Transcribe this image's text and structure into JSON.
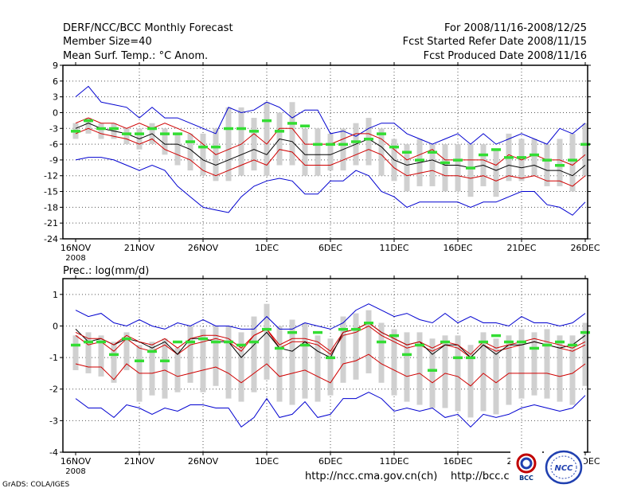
{
  "header": {
    "title": "DERF/NCC/BCC Monthly Forecast",
    "member_size": "Member Size=40",
    "variable": "Mean Surf. Temp.: °C Anom.",
    "period": "For 2008/11/16-2008/12/25",
    "started": "Fcst Started Refer Date 2008/11/15",
    "produced": "Fcst Produced Date 2008/11/16"
  },
  "footer": {
    "grads": "GrADS: COLA/IGES",
    "url1": "http://ncc.cma.gov.cn(ch)",
    "url2": "http://bcc.c",
    "logo_bcc": "BCC",
    "logo_ncc": "NCC"
  },
  "colors": {
    "median": "#000000",
    "inner": "#d00000",
    "outer": "#0000d0",
    "box": "#d0d0d0",
    "obs": "#33dd33",
    "grid": "#555555"
  },
  "chart_data": [
    {
      "type": "line",
      "name": "temperature",
      "title": "",
      "xlabel": "",
      "ylabel": "",
      "x_ticks": [
        "16NOV",
        "21NOV",
        "26NOV",
        "1DEC",
        "6DEC",
        "11DEC",
        "16DEC",
        "21DEC",
        "26DEC"
      ],
      "x_sublabel": "2008",
      "ylim": [
        -24,
        9
      ],
      "y_ticks": [
        9,
        6,
        3,
        0,
        -3,
        -6,
        -9,
        -12,
        -15,
        -18,
        -21,
        -24
      ],
      "y_labels": [
        "9",
        "6",
        "3",
        "0",
        "-3",
        "-6",
        "-9",
        "-12",
        "-15",
        "-18",
        "-21",
        "-24"
      ],
      "grid": true,
      "series": [
        {
          "name": "max",
          "color": "outer",
          "values": [
            3,
            5,
            2,
            1.5,
            1,
            -1,
            1,
            -1,
            -1,
            -2,
            -3,
            -4,
            1,
            0,
            0.5,
            2,
            1,
            -1,
            0.5,
            0.5,
            -4,
            -3.5,
            -4.5,
            -3,
            -2,
            -2,
            -4,
            -5,
            -6,
            -5,
            -4,
            -6,
            -4,
            -6,
            -5,
            -4,
            -5,
            -6,
            -3,
            -4,
            -2
          ]
        },
        {
          "name": "q75",
          "color": "inner",
          "values": [
            -2,
            -1,
            -2,
            -2,
            -3,
            -2,
            -3,
            -2,
            -3,
            -4,
            -6,
            -8,
            -7,
            -6,
            -4,
            -6,
            -3,
            -3,
            -6,
            -6,
            -6,
            -5,
            -4,
            -4,
            -5,
            -7,
            -9,
            -8,
            -7,
            -9,
            -9,
            -9,
            -9,
            -10,
            -8,
            -9,
            -8,
            -9,
            -9,
            -10,
            -8
          ]
        },
        {
          "name": "median",
          "color": "median",
          "values": [
            -3,
            -2,
            -3,
            -3.5,
            -4,
            -5,
            -4,
            -6,
            -6,
            -7,
            -9,
            -10,
            -9,
            -8,
            -7,
            -8,
            -5,
            -5.5,
            -8,
            -8,
            -8,
            -7,
            -6,
            -5,
            -6.5,
            -9,
            -10,
            -9.5,
            -9,
            -10,
            -10,
            -10.5,
            -10,
            -11,
            -10,
            -10.5,
            -10,
            -11,
            -11,
            -12,
            -10
          ]
        },
        {
          "name": "q25",
          "color": "inner",
          "values": [
            -4,
            -3,
            -4,
            -4.5,
            -5,
            -6,
            -5,
            -7,
            -8,
            -9,
            -11,
            -12,
            -11,
            -10,
            -9,
            -10,
            -7,
            -7.5,
            -10,
            -10,
            -10,
            -9,
            -8,
            -7,
            -8,
            -10.5,
            -12,
            -11.5,
            -11,
            -12,
            -12,
            -12.5,
            -12,
            -13,
            -12,
            -12.5,
            -12,
            -13,
            -13,
            -14,
            -12
          ]
        },
        {
          "name": "min",
          "color": "outer",
          "values": [
            -9,
            -8.5,
            -8.5,
            -9,
            -10,
            -11,
            -10,
            -11,
            -14,
            -16,
            -18,
            -18.5,
            -19,
            -16,
            -14,
            -13,
            -12.5,
            -13,
            -15.5,
            -15.5,
            -13,
            -13,
            -11,
            -12,
            -15,
            -16,
            -18,
            -17,
            -17,
            -17,
            -17,
            -18,
            -17,
            -17,
            -16,
            -15,
            -15,
            -17.5,
            -18,
            -19.5,
            -17
          ]
        }
      ],
      "boxes": [
        [
          -5,
          -2
        ],
        [
          -4,
          -1
        ],
        [
          -5,
          -2
        ],
        [
          -5,
          -2
        ],
        [
          -6,
          -3
        ],
        [
          -7,
          -3
        ],
        [
          -6,
          -2
        ],
        [
          -8,
          -3
        ],
        [
          -10,
          -4
        ],
        [
          -11,
          -4
        ],
        [
          -12,
          -4
        ],
        [
          -13,
          -3
        ],
        [
          -13,
          1
        ],
        [
          -12,
          1
        ],
        [
          -11,
          -1
        ],
        [
          -12,
          2
        ],
        [
          -10,
          0
        ],
        [
          -10,
          2
        ],
        [
          -12,
          -3
        ],
        [
          -12,
          -3
        ],
        [
          -11,
          -4
        ],
        [
          -11,
          -3
        ],
        [
          -10,
          -2
        ],
        [
          -10,
          -1
        ],
        [
          -12,
          -3
        ],
        [
          -13,
          -5
        ],
        [
          -15,
          -6
        ],
        [
          -14,
          -5
        ],
        [
          -14,
          -6
        ],
        [
          -15,
          -6
        ],
        [
          -15,
          -6
        ],
        [
          -16,
          -6
        ],
        [
          -14,
          -6
        ],
        [
          -16,
          -7
        ],
        [
          -13,
          -4
        ],
        [
          -13,
          -5
        ],
        [
          -12,
          -5
        ],
        [
          -14,
          -6
        ],
        [
          -14,
          -5
        ],
        [
          -15,
          -4
        ],
        [
          -12,
          -2
        ]
      ],
      "observed": [
        -3.5,
        -1.5,
        -3,
        -3,
        -4,
        -4,
        -3,
        -4,
        -4,
        -5.5,
        -6.5,
        -6.5,
        -3,
        -3,
        -3.5,
        -1.5,
        -3.5,
        -2,
        -2.5,
        -6,
        -6,
        -6,
        -5.5,
        -5,
        -4,
        -6.5,
        -7.5,
        -9,
        -7.5,
        -9.5,
        -9,
        -10.5,
        -8,
        -7,
        -8.5,
        -8.5,
        -8,
        -9,
        -10,
        -9,
        -6
      ]
    },
    {
      "type": "line",
      "name": "precipitation",
      "title": "Prec.: log(mm/d)",
      "xlabel": "",
      "ylabel": "",
      "x_ticks": [
        "16NOV",
        "21NOV",
        "26NOV",
        "1DEC",
        "6DEC",
        "11DEC",
        "16DEC",
        "21DEC",
        "26DEC"
      ],
      "x_sublabel": "2008",
      "ylim": [
        -4,
        1.5
      ],
      "y_ticks": [
        1,
        0,
        -1,
        -2,
        -3,
        -4
      ],
      "y_labels": [
        "1",
        "0",
        "-1",
        "-2",
        "-3",
        "-4"
      ],
      "grid": true,
      "series": [
        {
          "name": "max",
          "color": "outer",
          "values": [
            0.5,
            0.3,
            0.4,
            0.1,
            0.0,
            0.2,
            0.0,
            -0.1,
            0.1,
            0.0,
            0.2,
            0.0,
            0.0,
            -0.1,
            -0.1,
            0.3,
            -0.1,
            -0.1,
            0.1,
            0.0,
            -0.1,
            0.1,
            0.5,
            0.7,
            0.5,
            0.3,
            0.4,
            0.2,
            0.1,
            0.4,
            0.1,
            0.3,
            0.1,
            0.1,
            0.0,
            0.3,
            0.1,
            0.1,
            0.0,
            0.1,
            0.4
          ]
        },
        {
          "name": "q75",
          "color": "inner",
          "values": [
            -0.3,
            -0.6,
            -0.5,
            -0.8,
            -0.4,
            -0.7,
            -0.8,
            -0.6,
            -0.9,
            -0.6,
            -0.5,
            -0.4,
            -0.5,
            -0.8,
            -0.3,
            -0.1,
            -0.7,
            -0.5,
            -0.5,
            -0.6,
            -0.9,
            -0.3,
            -0.2,
            0.0,
            -0.3,
            -0.5,
            -0.7,
            -0.6,
            -0.8,
            -0.6,
            -0.7,
            -1.0,
            -0.6,
            -0.8,
            -0.7,
            -0.6,
            -0.5,
            -0.6,
            -0.7,
            -0.8,
            -0.6
          ]
        },
        {
          "name": "median",
          "color": "median",
          "values": [
            -0.1,
            -0.5,
            -0.4,
            -0.6,
            -0.4,
            -0.5,
            -0.7,
            -0.5,
            -0.9,
            -0.4,
            -0.4,
            -0.5,
            -0.5,
            -1.0,
            -0.6,
            -0.2,
            -0.7,
            -0.8,
            -0.5,
            -0.8,
            -1.0,
            -0.2,
            -0.1,
            0.1,
            -0.2,
            -0.4,
            -0.6,
            -0.5,
            -0.9,
            -0.6,
            -0.6,
            -1.0,
            -0.6,
            -0.9,
            -0.6,
            -0.6,
            -0.5,
            -0.6,
            -0.7,
            -0.6,
            -0.3
          ]
        },
        {
          "name": "q25",
          "color": "inner",
          "values": [
            -1.2,
            -1.3,
            -1.3,
            -1.7,
            -1.2,
            -1.5,
            -1.5,
            -1.4,
            -1.6,
            -1.5,
            -1.4,
            -1.3,
            -1.5,
            -1.8,
            -1.5,
            -1.2,
            -1.6,
            -1.5,
            -1.4,
            -1.6,
            -1.8,
            -1.2,
            -1.1,
            -0.9,
            -1.2,
            -1.4,
            -1.6,
            -1.5,
            -1.8,
            -1.5,
            -1.6,
            -1.9,
            -1.5,
            -1.8,
            -1.5,
            -1.5,
            -1.5,
            -1.5,
            -1.6,
            -1.5,
            -1.2
          ]
        },
        {
          "name": "min",
          "color": "outer",
          "values": [
            -2.3,
            -2.6,
            -2.6,
            -2.9,
            -2.5,
            -2.6,
            -2.8,
            -2.6,
            -2.7,
            -2.5,
            -2.5,
            -2.6,
            -2.6,
            -3.2,
            -2.9,
            -2.3,
            -2.9,
            -2.8,
            -2.4,
            -2.9,
            -2.8,
            -2.3,
            -2.3,
            -2.1,
            -2.3,
            -2.7,
            -2.6,
            -2.7,
            -2.6,
            -2.9,
            -2.8,
            -3.2,
            -2.8,
            -2.9,
            -2.8,
            -2.6,
            -2.5,
            -2.6,
            -2.7,
            -2.6,
            -2.2
          ]
        },
        {
          "name": "p85",
          "color": "inner",
          "values": [
            -0.2,
            -0.4,
            -0.4,
            -0.6,
            -0.3,
            -0.5,
            -0.6,
            -0.4,
            -0.7,
            -0.4,
            -0.3,
            -0.3,
            -0.4,
            -0.7,
            -0.3,
            -0.1,
            -0.6,
            -0.4,
            -0.4,
            -0.5,
            -0.8,
            -0.2,
            -0.1,
            0.1,
            -0.2,
            -0.4,
            -0.6,
            -0.5,
            -0.7,
            -0.5,
            -0.6,
            -0.9,
            -0.5,
            -0.7,
            -0.6,
            -0.5,
            -0.4,
            -0.5,
            -0.6,
            -0.7,
            -0.5
          ]
        }
      ],
      "boxes": [
        [
          -1.4,
          -0.3
        ],
        [
          -1.5,
          -0.2
        ],
        [
          -1.6,
          -0.3
        ],
        [
          -1.8,
          -0.5
        ],
        [
          -1.4,
          -0.2
        ],
        [
          -2.4,
          -0.6
        ],
        [
          -2.2,
          -0.5
        ],
        [
          -2.3,
          -0.4
        ],
        [
          -2.1,
          -0.7
        ],
        [
          -1.8,
          0.0
        ],
        [
          -2.1,
          -0.1
        ],
        [
          -1.9,
          0.0
        ],
        [
          -2.3,
          0.0
        ],
        [
          -2.4,
          -0.2
        ],
        [
          -2.1,
          0.3
        ],
        [
          -1.7,
          0.7
        ],
        [
          -2.4,
          0.0
        ],
        [
          -2.5,
          0.2
        ],
        [
          -2.3,
          0.1
        ],
        [
          -2.4,
          -0.3
        ],
        [
          -2.2,
          -0.4
        ],
        [
          -1.8,
          0.3
        ],
        [
          -1.7,
          0.4
        ],
        [
          -1.5,
          0.5
        ],
        [
          -1.8,
          0.1
        ],
        [
          -2.2,
          -0.1
        ],
        [
          -2.4,
          -0.2
        ],
        [
          -2.5,
          -0.2
        ],
        [
          -2.6,
          -0.4
        ],
        [
          -2.6,
          -0.3
        ],
        [
          -2.7,
          -0.3
        ],
        [
          -2.9,
          -0.6
        ],
        [
          -2.7,
          -0.2
        ],
        [
          -2.8,
          -0.4
        ],
        [
          -2.5,
          -0.3
        ],
        [
          -2.3,
          -0.1
        ],
        [
          -2.2,
          -0.2
        ],
        [
          -2.3,
          -0.1
        ],
        [
          -2.4,
          -0.3
        ],
        [
          -2.5,
          -0.3
        ],
        [
          -1.9,
          0.1
        ]
      ],
      "observed": [
        -0.6,
        -0.5,
        -0.5,
        -0.9,
        -0.4,
        -1.1,
        -0.8,
        -1.1,
        -0.5,
        -0.5,
        -0.4,
        -0.5,
        -0.5,
        -0.6,
        -0.5,
        -0.1,
        -0.7,
        -0.2,
        -0.6,
        -0.2,
        -1.0,
        -0.1,
        -0.1,
        0.1,
        -0.5,
        -0.3,
        -0.9,
        -0.6,
        -1.4,
        -0.5,
        -1.0,
        -1.0,
        -0.5,
        -0.3,
        -0.5,
        -0.5,
        -0.7,
        -0.6,
        -0.5,
        -0.6,
        -0.2
      ]
    }
  ]
}
